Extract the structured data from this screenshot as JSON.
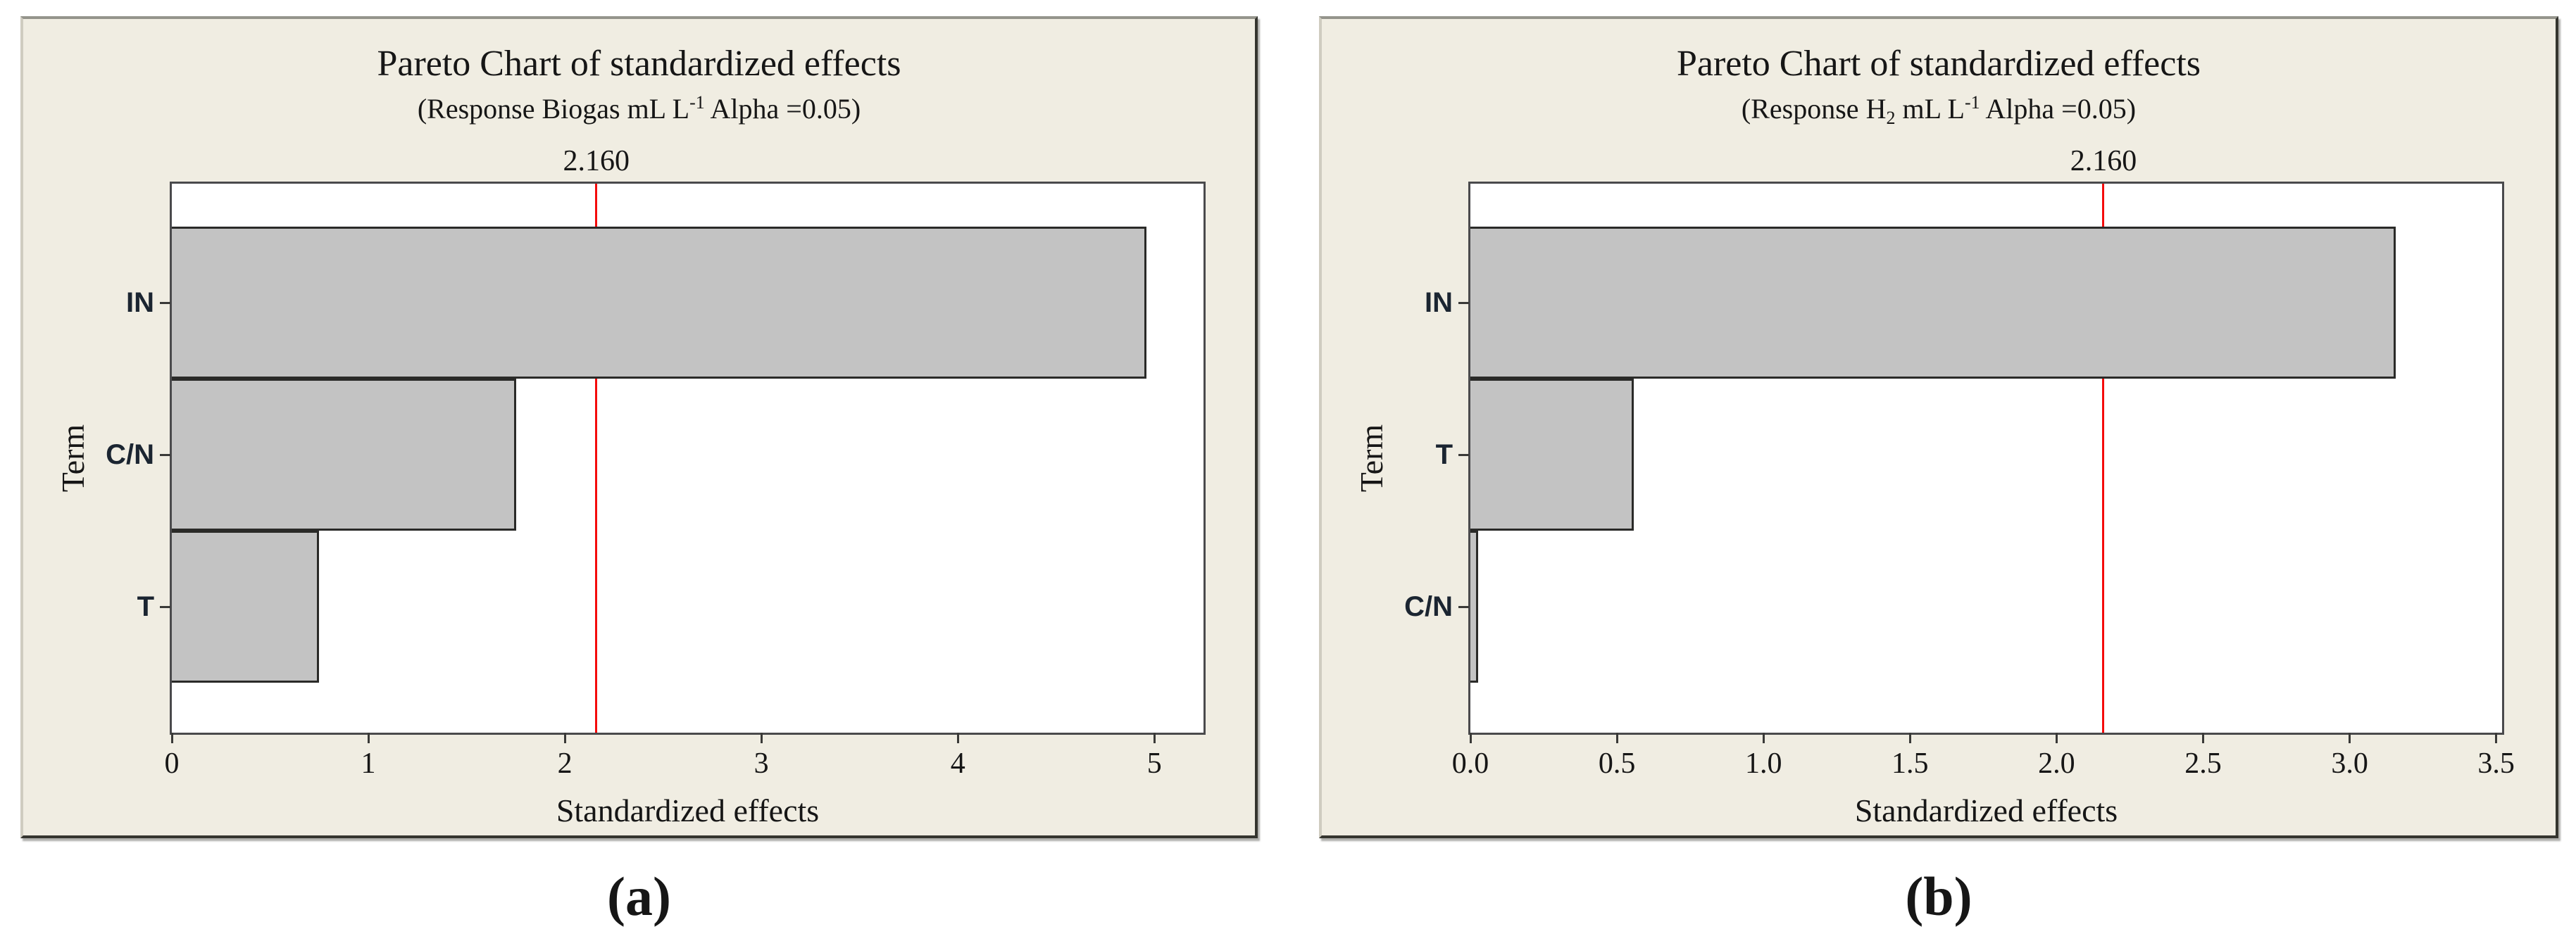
{
  "colors": {
    "page_bg": "#ffffff",
    "panel_bg": "#f0ede2",
    "plot_bg": "#ffffff",
    "plot_border": "#4a4a4c",
    "bar_fill": "#c3c3c3",
    "bar_border": "#2a2a28",
    "reference_line": "#f40b0b",
    "text": "#161616",
    "category_text": "#1b2531"
  },
  "chart_data": [
    {
      "type": "bar",
      "orientation": "horizontal",
      "title": "Pareto Chart of standardized effects",
      "subtitle_segments": [
        {
          "t": "(Response Biogas mL L"
        },
        {
          "t": "-1",
          "pos": "sup"
        },
        {
          "t": " Alpha =0.05)"
        }
      ],
      "xlabel": "Standardized effects",
      "ylabel": "Term",
      "categories": [
        "IN",
        "C/N",
        "T"
      ],
      "values": [
        4.95,
        1.74,
        0.74
      ],
      "xlim": [
        0,
        5.25
      ],
      "xticks": [
        0,
        1,
        2,
        3,
        4,
        5
      ],
      "xtick_labels": [
        "0",
        "1",
        "2",
        "3",
        "4",
        "5"
      ],
      "reference_line": {
        "value": 2.16,
        "label": "2.160"
      },
      "grid": false,
      "legend": "none",
      "caption": "(a)"
    },
    {
      "type": "bar",
      "orientation": "horizontal",
      "title": "Pareto Chart of standardized effects",
      "subtitle_segments": [
        {
          "t": "(Response H"
        },
        {
          "t": "2",
          "pos": "sub"
        },
        {
          "t": " mL L"
        },
        {
          "t": "-1",
          "pos": "sup"
        },
        {
          "t": " Alpha =0.05)"
        }
      ],
      "xlabel": "Standardized effects",
      "ylabel": "Term",
      "categories": [
        "IN",
        "T",
        "C/N"
      ],
      "values": [
        3.15,
        0.55,
        0.02
      ],
      "xlim": [
        0,
        3.52
      ],
      "xticks": [
        0,
        0.5,
        1,
        1.5,
        2,
        2.5,
        3,
        3.5
      ],
      "xtick_labels": [
        "0.0",
        "0.5",
        "1.0",
        "1.5",
        "2.0",
        "2.5",
        "3.0",
        "3.5"
      ],
      "reference_line": {
        "value": 2.16,
        "label": "2.160"
      },
      "grid": false,
      "legend": "none",
      "caption": "(b)"
    }
  ]
}
